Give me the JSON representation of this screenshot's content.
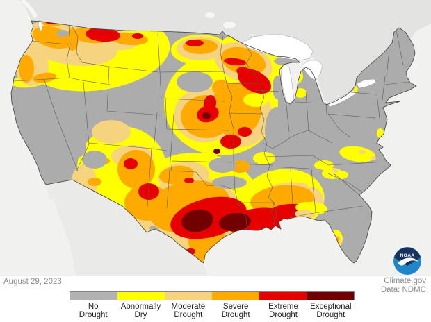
{
  "date_label": "August 29, 2023",
  "attribution": {
    "line1": "Climate.gov",
    "line2": "Data: NDMC"
  },
  "noaa_logo_text": "NOAA",
  "legend": {
    "items": [
      {
        "label_line1": "No",
        "label_line2": "Drought",
        "color": "#b2b2b2"
      },
      {
        "label_line1": "Abnormally",
        "label_line2": "Dry",
        "color": "#ffff00"
      },
      {
        "label_line1": "Moderate",
        "label_line2": "Drought",
        "color": "#f5d37f"
      },
      {
        "label_line1": "Severe",
        "label_line2": "Drought",
        "color": "#ffaa00"
      },
      {
        "label_line1": "Extreme",
        "label_line2": "Drought",
        "color": "#e60000"
      },
      {
        "label_line1": "Exceptional",
        "label_line2": "Drought",
        "color": "#730000"
      }
    ]
  },
  "colors": {
    "ocean": "#f1f1ef",
    "canada": "#e3e3e1",
    "mexico": "#eaeae8",
    "lakes": "#ffffff",
    "nd": "#acacac",
    "d0": "#ffff00",
    "d1": "#f5d37f",
    "d2": "#ffaa00",
    "d3": "#e60000",
    "d4": "#730000",
    "state_border": "#5a5a5a",
    "us_outline": "#3f3f3f",
    "text_muted": "#8c8c8c",
    "legend_text": "#1d1d1d",
    "noaa_navy": "#17325f",
    "noaa_blue": "#1f86c9"
  }
}
